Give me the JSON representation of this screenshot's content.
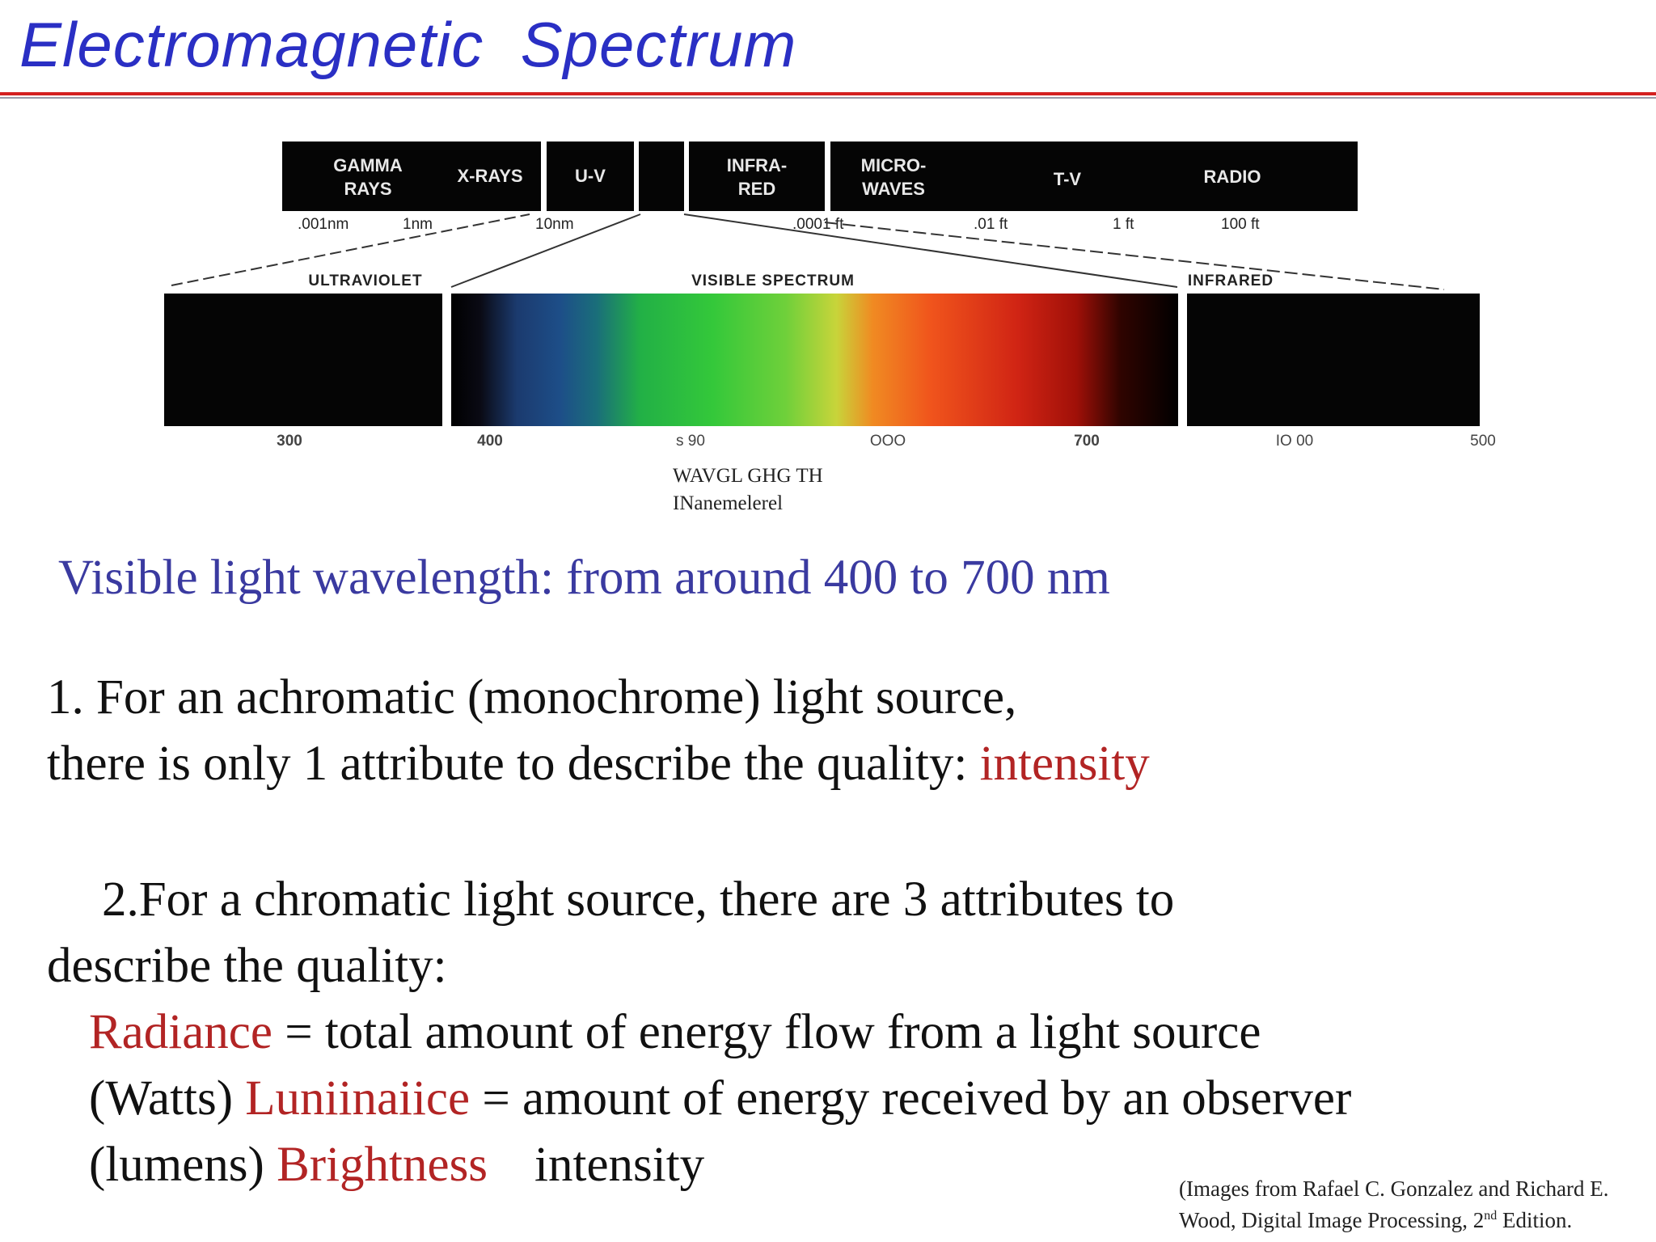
{
  "title": "Electromagnetic  Spectrum",
  "colors": {
    "title": "#2a2fc4",
    "rule": "#d42020",
    "highlight": "#b22424",
    "subtitle": "#3a3aa0"
  },
  "spectrum": {
    "bands": [
      "GAMMA",
      "RAYS",
      "X-RAYS",
      "U-V",
      "INFRA-",
      "RED",
      "MICRO-",
      "WAVES",
      "T-V",
      "RADIO"
    ],
    "units": [
      ".001nm",
      "1nm",
      "10nm",
      ".0001 ft",
      ".01 ft",
      "1 ft",
      "100 ft"
    ],
    "regions": [
      "ULTRAVIOLET",
      "VISIBLE SPECTRUM",
      "INFRARED"
    ],
    "ticks": [
      "300",
      "400",
      "s 90",
      "OOO",
      "700",
      "IO 00",
      "500"
    ],
    "axis_label_1": "WAVGL GHG TH",
    "axis_label_2": "INanemelerel"
  },
  "visible_range": "Visible light wavelength: from around 400 to 700 nm",
  "point1": {
    "line1": "1. For an achromatic (monochrome) light source,",
    "line2_text": "there is only 1 attribute to describe the quality: ",
    "line2_highlight": "intensity"
  },
  "point2": {
    "line1": "2.For a chromatic light source, there are 3 attributes to",
    "line2": "describe the quality:",
    "radiance_term": "Radiance",
    "radiance_def": " = total amount of energy flow from a light source",
    "watts": "(Watts) ",
    "luminance_term": "Luniinaiice",
    "luminance_def": " = amount of energy received by an observer",
    "lumens": "(lumens) ",
    "brightness_term": "Brightness",
    "brightness_def": "intensity"
  },
  "credit": {
    "line1": "(Images from Rafael C. Gonzalez and Richard E.",
    "line2_a": "Wood, Digital Image Processing, 2",
    "line2_sup": "nd",
    "line2_b": " Edition."
  }
}
